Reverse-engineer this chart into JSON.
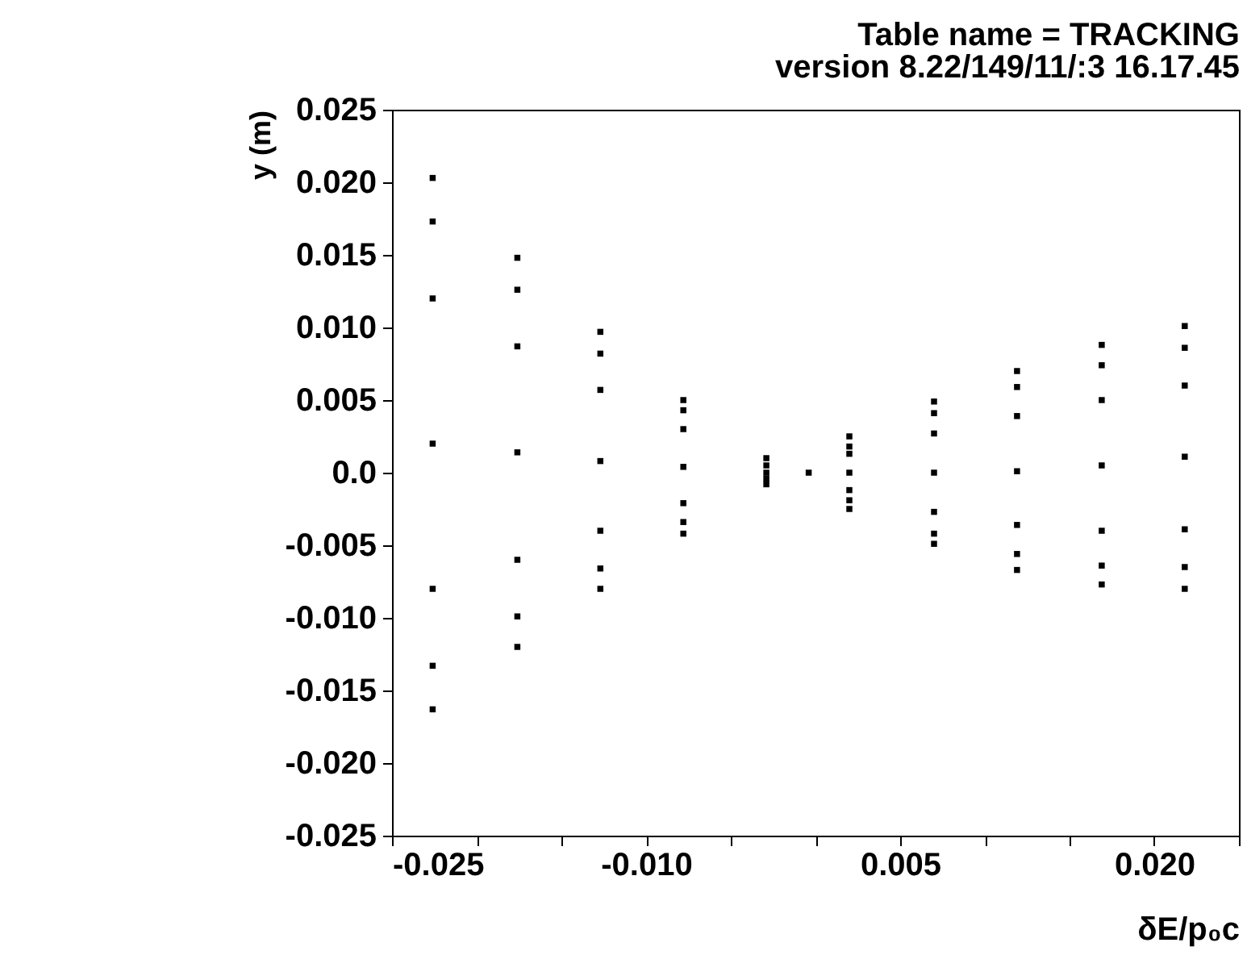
{
  "chart_data": {
    "type": "scatter",
    "title": "Table name = TRACKING",
    "subtitle": "version 8.22/149/11/:3  16.17.45",
    "xlabel": "δE/p₀c",
    "ylabel": "y (m)",
    "xlim": [
      -0.025,
      0.025
    ],
    "xticks": [
      {
        "value": -0.025,
        "label": "-0.025"
      },
      {
        "value": -0.02,
        "label": null
      },
      {
        "value": -0.015,
        "label": null
      },
      {
        "value": -0.01,
        "label": "-0.010"
      },
      {
        "value": -0.005,
        "label": null
      },
      {
        "value": 0,
        "label": null
      },
      {
        "value": 0.005,
        "label": "0.005"
      },
      {
        "value": 0.01,
        "label": null
      },
      {
        "value": 0.015,
        "label": null
      },
      {
        "value": 0.02,
        "label": "0.020"
      },
      {
        "value": 0.025,
        "label": null
      }
    ],
    "ylim": [
      -0.025,
      0.025
    ],
    "yticks": [
      {
        "value": -0.025,
        "label": "-0.025"
      },
      {
        "value": -0.02,
        "label": "-0.020"
      },
      {
        "value": -0.015,
        "label": "-0.015"
      },
      {
        "value": -0.01,
        "label": "-0.010"
      },
      {
        "value": -0.005,
        "label": "-0.005"
      },
      {
        "value": 0,
        "label": "0.0"
      },
      {
        "value": 0.005,
        "label": "0.005"
      },
      {
        "value": 0.01,
        "label": "0.010"
      },
      {
        "value": 0.015,
        "label": "0.015"
      },
      {
        "value": 0.02,
        "label": "0.020"
      },
      {
        "value": 0.025,
        "label": "0.025"
      }
    ],
    "grid": false,
    "legend": false,
    "marker": "square",
    "series": [
      {
        "color": "#000000",
        "x": [
          -0.0226,
          -0.0226,
          -0.0226,
          -0.0226,
          -0.0226,
          -0.0226,
          -0.0226,
          -0.0176,
          -0.0176,
          -0.0176,
          -0.0176,
          -0.0176,
          -0.0176,
          -0.0176,
          -0.0127,
          -0.0127,
          -0.0127,
          -0.0127,
          -0.0127,
          -0.0127,
          -0.0127,
          -0.0078,
          -0.0078,
          -0.0078,
          -0.0078,
          -0.0078,
          -0.0078,
          -0.0078,
          -0.0029,
          -0.0029,
          -0.0029,
          -0.0029,
          -0.0029,
          -0.0004,
          0.002,
          0.002,
          0.002,
          0.002,
          0.002,
          0.002,
          0.002,
          0.007,
          0.007,
          0.007,
          0.007,
          0.007,
          0.007,
          0.007,
          0.0119,
          0.0119,
          0.0119,
          0.0119,
          0.0119,
          0.0119,
          0.0119,
          0.0169,
          0.0169,
          0.0169,
          0.0169,
          0.0169,
          0.0169,
          0.0169,
          0.0218,
          0.0218,
          0.0218,
          0.0218,
          0.0218,
          0.0218,
          0.0218
        ],
        "values": [
          0.0203,
          0.0173,
          0.012,
          0.002,
          -0.008,
          -0.0133,
          -0.0163,
          0.0148,
          0.0126,
          0.0087,
          0.0014,
          -0.006,
          -0.0099,
          -0.012,
          0.0097,
          0.0082,
          0.0057,
          0.0008,
          -0.004,
          -0.0066,
          -0.008,
          0.005,
          0.0043,
          0.003,
          0.0004,
          -0.0021,
          -0.0034,
          -0.0042,
          0.001,
          0.0005,
          0.0,
          -0.0004,
          -0.0008,
          0.0,
          0.0025,
          0.0018,
          0.0013,
          0.0,
          -0.0012,
          -0.0019,
          -0.0025,
          0.0049,
          0.0041,
          0.0027,
          0.0,
          -0.0027,
          -0.0042,
          -0.0049,
          0.007,
          0.0059,
          0.0039,
          0.0001,
          -0.0036,
          -0.0056,
          -0.0067,
          0.0088,
          0.0074,
          0.005,
          0.0005,
          -0.004,
          -0.0064,
          -0.0077,
          0.0101,
          0.0086,
          0.006,
          0.0011,
          -0.0039,
          -0.0065,
          -0.008
        ]
      }
    ]
  }
}
